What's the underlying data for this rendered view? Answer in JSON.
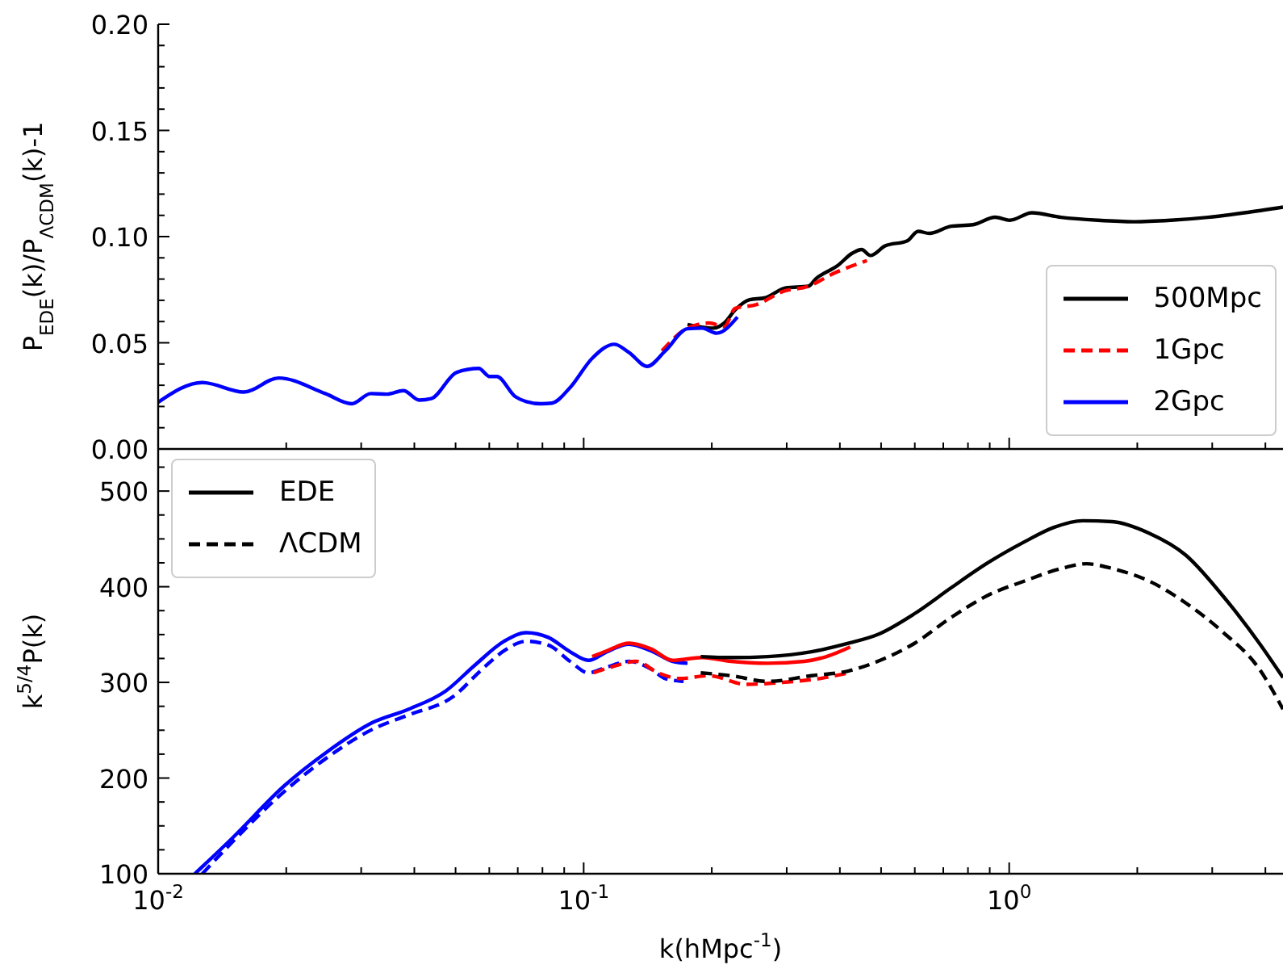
{
  "chart_data": [
    {
      "type": "line",
      "ylabel": "P$_{EDE}$(k)/P$_{ΛCDM}$(k)-1",
      "log": "x",
      "legend": "bottom right",
      "tick_labels": "y",
      "xlim": [
        0.01,
        4.4
      ],
      "xticks": [
        {
          "value": 0.01,
          "label": null
        },
        {
          "value": 0.02,
          "label": null
        },
        {
          "value": 0.03,
          "label": null
        },
        {
          "value": 0.04,
          "label": null
        },
        {
          "value": 0.05,
          "label": null
        },
        {
          "value": 0.06,
          "label": null
        },
        {
          "value": 0.07,
          "label": null
        },
        {
          "value": 0.08,
          "label": null
        },
        {
          "value": 0.09,
          "label": null
        },
        {
          "value": 0.1,
          "label": null
        },
        {
          "value": 0.2,
          "label": null
        },
        {
          "value": 0.3,
          "label": null
        },
        {
          "value": 0.4,
          "label": null
        },
        {
          "value": 0.5,
          "label": null
        },
        {
          "value": 0.6,
          "label": null
        },
        {
          "value": 0.7,
          "label": null
        },
        {
          "value": 0.8,
          "label": null
        },
        {
          "value": 0.9,
          "label": null
        },
        {
          "value": 1,
          "label": null
        },
        {
          "value": 2,
          "label": null
        },
        {
          "value": 3,
          "label": null
        },
        {
          "value": 4,
          "label": null
        }
      ],
      "ylim": [
        0,
        0.2
      ],
      "yticks": [
        {
          "value": 0,
          "label": "0.00"
        },
        {
          "value": 0.01,
          "label": null
        },
        {
          "value": 0.02,
          "label": null
        },
        {
          "value": 0.03,
          "label": null
        },
        {
          "value": 0.04,
          "label": null
        },
        {
          "value": 0.05,
          "label": "0.05"
        },
        {
          "value": 0.06,
          "label": null
        },
        {
          "value": 0.07,
          "label": null
        },
        {
          "value": 0.08,
          "label": null
        },
        {
          "value": 0.09,
          "label": null
        },
        {
          "value": 0.1,
          "label": "0.10"
        },
        {
          "value": 0.11,
          "label": null
        },
        {
          "value": 0.12,
          "label": null
        },
        {
          "value": 0.13,
          "label": null
        },
        {
          "value": 0.14,
          "label": null
        },
        {
          "value": 0.15,
          "label": "0.15"
        },
        {
          "value": 0.16,
          "label": null
        },
        {
          "value": 0.17,
          "label": null
        },
        {
          "value": 0.18,
          "label": null
        },
        {
          "value": 0.19,
          "label": null
        },
        {
          "value": 0.2,
          "label": "0.20"
        }
      ],
      "series": [
        {
          "name": "500Mpc",
          "color": "#000000",
          "line_style": "solid",
          "x": [
            0.1754,
            0.2014,
            0.214,
            0.227,
            0.2455,
            0.266,
            0.299,
            0.337,
            0.351,
            0.395,
            0.428,
            0.45,
            0.472,
            0.511,
            0.576,
            0.611,
            0.649,
            0.731,
            0.822,
            0.927,
            1.003,
            1.13,
            1.324,
            1.615,
            1.968,
            2.4,
            2.93,
            3.57,
            4.4
          ],
          "values": [
            0.0586,
            0.0569,
            0.0593,
            0.0655,
            0.0703,
            0.0711,
            0.0759,
            0.0766,
            0.0801,
            0.0863,
            0.0922,
            0.0939,
            0.0911,
            0.0956,
            0.098,
            0.1025,
            0.1015,
            0.1049,
            0.1056,
            0.1091,
            0.1077,
            0.1112,
            0.1091,
            0.1077,
            0.107,
            0.1077,
            0.1091,
            0.1112,
            0.1139
          ]
        },
        {
          "name": "1Gpc",
          "color": "#ff0000",
          "line_style": "dashed",
          "x": [
            0.1527,
            0.1754,
            0.197,
            0.214,
            0.227,
            0.255,
            0.294,
            0.337,
            0.388,
            0.463
          ],
          "values": [
            0.0462,
            0.0569,
            0.0593,
            0.0576,
            0.0662,
            0.068,
            0.0742,
            0.0766,
            0.0828,
            0.0887
          ]
        },
        {
          "name": "2Gpc",
          "color": "#0000ff",
          "line_style": "solid",
          "x": [
            0.01,
            0.0127,
            0.0159,
            0.0192,
            0.0247,
            0.0285,
            0.0316,
            0.0345,
            0.0377,
            0.0411,
            0.0438,
            0.0503,
            0.0567,
            0.0601,
            0.0625,
            0.069,
            0.0733,
            0.0794,
            0.0842,
            0.0929,
            0.1047,
            0.118,
            0.1277,
            0.141,
            0.1556,
            0.1754,
            0.1898,
            0.2055,
            0.2298
          ],
          "values": [
            0.022,
            0.0313,
            0.0268,
            0.0334,
            0.0261,
            0.0213,
            0.0261,
            0.0258,
            0.0275,
            0.023,
            0.0237,
            0.0361,
            0.0379,
            0.0341,
            0.0341,
            0.0247,
            0.0223,
            0.0213,
            0.0216,
            0.0289,
            0.0427,
            0.0493,
            0.0455,
            0.0389,
            0.0462,
            0.0566,
            0.0569,
            0.0545,
            0.0621
          ]
        }
      ]
    },
    {
      "type": "line",
      "xlabel": "k(hMpc$^{-1}$)",
      "ylabel": "k$^{5/4}$P(k)",
      "log": "x",
      "legend": "top left",
      "xlim": [
        0.01,
        4.4
      ],
      "xticks": [
        {
          "value": 0.01,
          "label": "10$^{-2}$"
        },
        {
          "value": 0.02,
          "label": null
        },
        {
          "value": 0.03,
          "label": null
        },
        {
          "value": 0.04,
          "label": null
        },
        {
          "value": 0.05,
          "label": null
        },
        {
          "value": 0.06,
          "label": null
        },
        {
          "value": 0.07,
          "label": null
        },
        {
          "value": 0.08,
          "label": null
        },
        {
          "value": 0.09,
          "label": null
        },
        {
          "value": 0.1,
          "label": "10$^{-1}$"
        },
        {
          "value": 0.2,
          "label": null
        },
        {
          "value": 0.3,
          "label": null
        },
        {
          "value": 0.4,
          "label": null
        },
        {
          "value": 0.5,
          "label": null
        },
        {
          "value": 0.6,
          "label": null
        },
        {
          "value": 0.7,
          "label": null
        },
        {
          "value": 0.8,
          "label": null
        },
        {
          "value": 0.9,
          "label": null
        },
        {
          "value": 1,
          "label": "10$^{0}$"
        },
        {
          "value": 2,
          "label": null
        },
        {
          "value": 3,
          "label": null
        },
        {
          "value": 4,
          "label": null
        }
      ],
      "ylim": [
        100,
        544
      ],
      "yticks": [
        100,
        {
          "value": 125,
          "label": null
        },
        {
          "value": 150,
          "label": null
        },
        {
          "value": 175,
          "label": null
        },
        200,
        {
          "value": 225,
          "label": null
        },
        {
          "value": 250,
          "label": null
        },
        {
          "value": 275,
          "label": null
        },
        300,
        {
          "value": 325,
          "label": null
        },
        {
          "value": 350,
          "label": null
        },
        {
          "value": 375,
          "label": null
        },
        400,
        {
          "value": 425,
          "label": null
        },
        {
          "value": 450,
          "label": null
        },
        {
          "value": 475,
          "label": null
        },
        500,
        {
          "value": 525,
          "label": null
        }
      ],
      "series": [
        {
          "color": "#0000ff",
          "line_style": "solid",
          "x": [
            0.0122,
            0.015,
            0.0198,
            0.0247,
            0.0319,
            0.0388,
            0.0474,
            0.0555,
            0.065,
            0.0733,
            0.0826,
            0.0929,
            0.1026,
            0.1134,
            0.1277,
            0.144,
            0.1619,
            0.1754
          ],
          "values": [
            100,
            138,
            192,
            226,
            258,
            272,
            291,
            318,
            343,
            352,
            347,
            332,
            323,
            332,
            340,
            333,
            322,
            320
          ]
        },
        {
          "color": "#0000ff",
          "line_style": "dashed",
          "x": [
            0.0127,
            0.015,
            0.0198,
            0.0247,
            0.0319,
            0.0388,
            0.0493,
            0.0578,
            0.065,
            0.0733,
            0.0826,
            0.0929,
            0.1026,
            0.1134,
            0.1277,
            0.144,
            0.1556,
            0.1717
          ],
          "values": [
            100,
            134,
            186,
            220,
            251,
            266,
            285,
            314,
            333,
            343,
            339,
            322,
            310,
            316,
            322,
            314,
            304,
            301
          ]
        },
        {
          "color": "#ff0000",
          "line_style": "solid",
          "x": [
            0.1047,
            0.1134,
            0.1277,
            0.144,
            0.1619,
            0.1898,
            0.222,
            0.271,
            0.33,
            0.372,
            0.423
          ],
          "values": [
            327,
            333,
            341,
            335,
            323,
            326,
            322,
            320,
            322,
            327,
            337
          ]
        },
        {
          "color": "#ff0000",
          "line_style": "dashed",
          "x": [
            0.1055,
            0.118,
            0.1327,
            0.1496,
            0.1685,
            0.197,
            0.2405,
            0.294,
            0.358,
            0.42
          ],
          "values": [
            310,
            317,
            322,
            310,
            304,
            307,
            298,
            300,
            304,
            310
          ]
        },
        {
          "name": "EDE",
          "color": "#000000",
          "line_style": "solid",
          "x": [
            0.1884,
            0.222,
            0.271,
            0.343,
            0.42,
            0.491,
            0.6,
            0.731,
            0.891,
            1.087,
            1.273,
            1.49,
            1.746,
            2.13,
            2.6,
            3.17,
            3.87,
            4.4
          ],
          "values": [
            327,
            326,
            327,
            332,
            341,
            350,
            372,
            399,
            425,
            447,
            462,
            469,
            468,
            456,
            433,
            391,
            341,
            305
          ]
        },
        {
          "name": "ΛCDM",
          "color": "#000000",
          "line_style": "dashed",
          "x": [
            0.1884,
            0.222,
            0.271,
            0.343,
            0.42,
            0.491,
            0.6,
            0.731,
            0.891,
            1.087,
            1.324,
            1.52,
            1.746,
            2.13,
            2.6,
            3.17,
            3.87,
            4.4
          ],
          "values": [
            310,
            307,
            301,
            307,
            312,
            322,
            341,
            368,
            391,
            406,
            419,
            424,
            419,
            406,
            383,
            353,
            314,
            272
          ]
        }
      ]
    }
  ]
}
